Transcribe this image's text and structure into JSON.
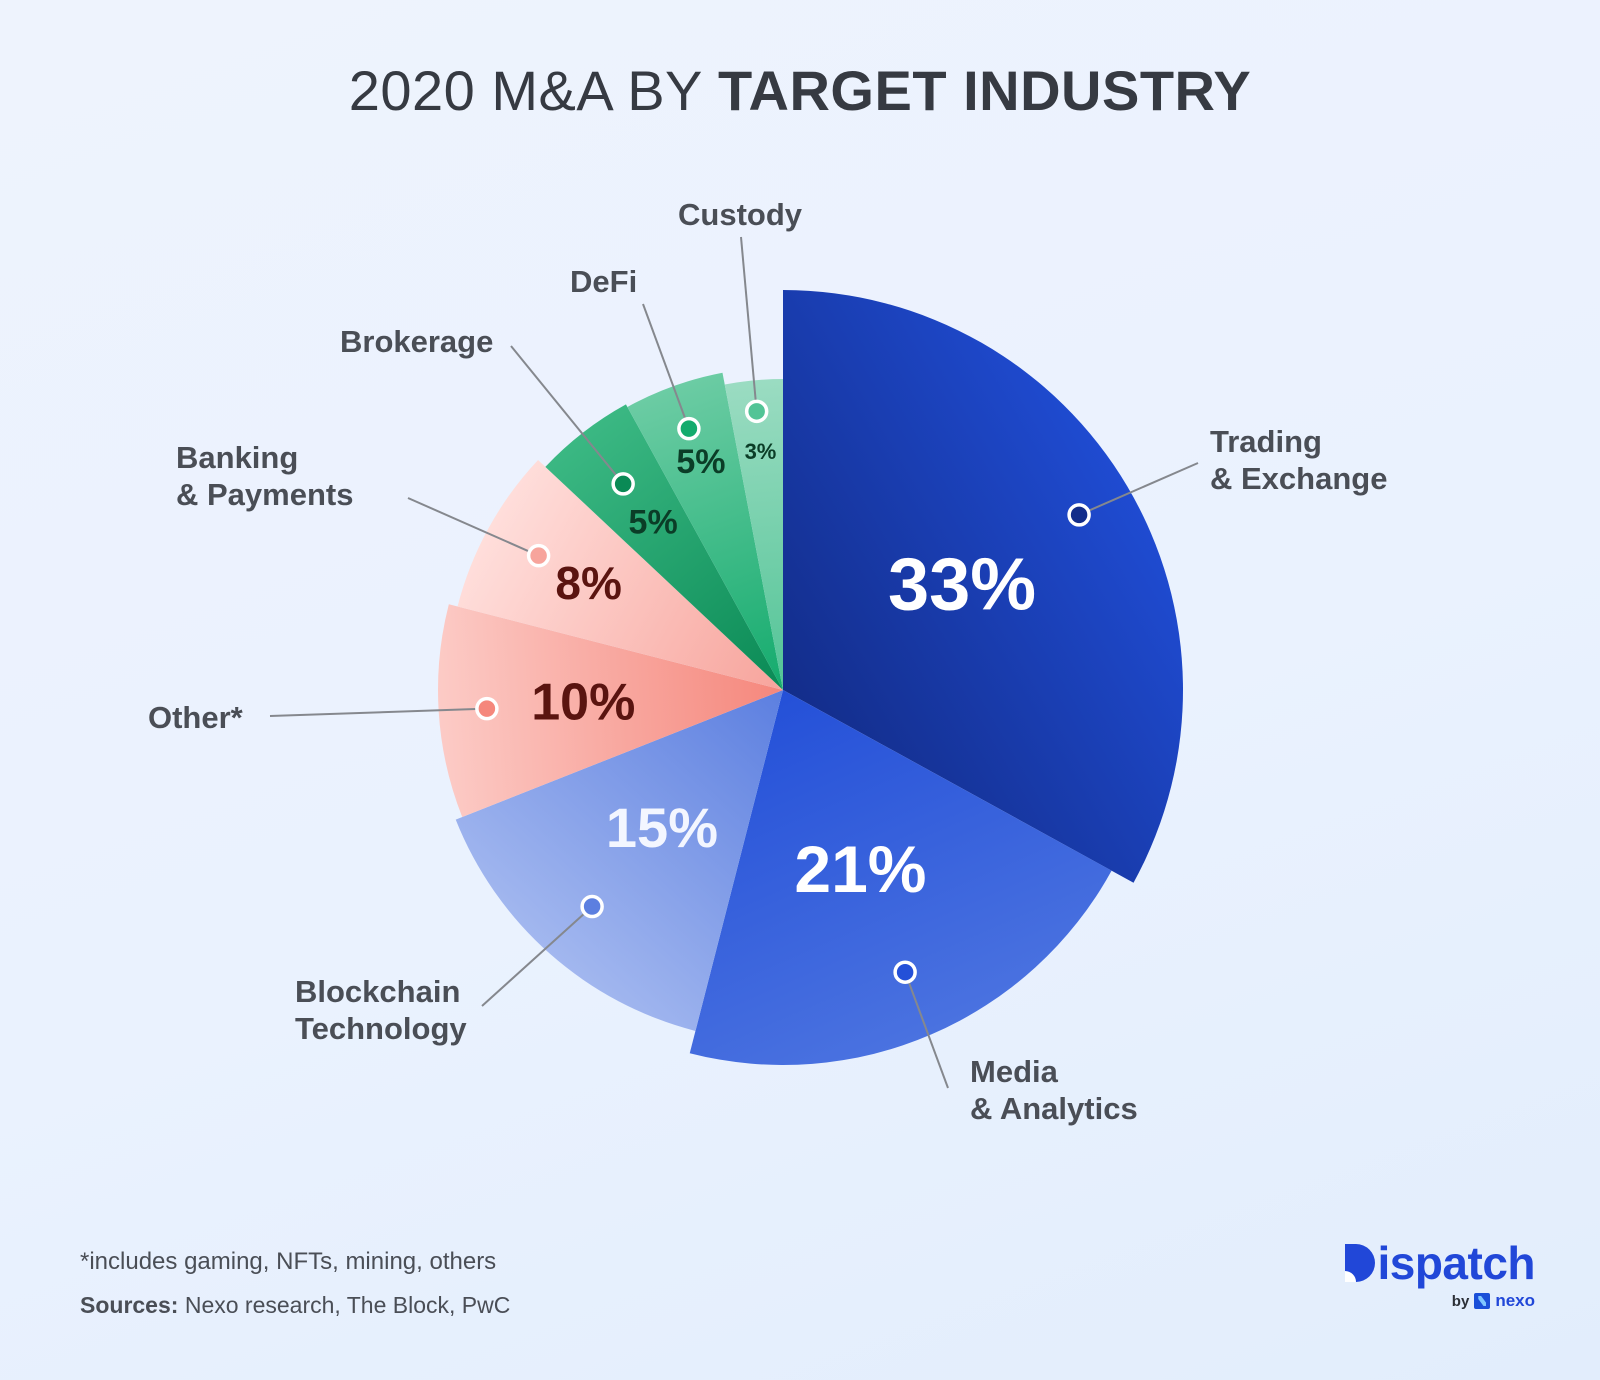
{
  "title": {
    "light": "2020 M&A BY ",
    "bold": "TARGET INDUSTRY"
  },
  "chart_data": {
    "type": "pie",
    "title": "2020 M&A BY TARGET INDUSTRY",
    "start_angle_deg": 0,
    "direction": "clockwise",
    "slices": [
      {
        "name": "Trading & Exchange",
        "label_lines": [
          "Trading",
          "& Exchange"
        ],
        "value": 33,
        "display": "33%",
        "color_light": "#1f4bd1",
        "color_dark": "#132d8a",
        "text_color": "#ffffff"
      },
      {
        "name": "Media & Analytics",
        "label_lines": [
          "Media",
          "& Analytics"
        ],
        "value": 21,
        "display": "21%",
        "color_light": "#4a72e0",
        "color_dark": "#2450d8",
        "text_color": "#ffffff"
      },
      {
        "name": "Blockchain Technology",
        "label_lines": [
          "Blockchain",
          "Technology"
        ],
        "value": 15,
        "display": "15%",
        "color_light": "#a2b7ef",
        "color_dark": "#5c7fe0",
        "text_color": "#f3f6ff"
      },
      {
        "name": "Other*",
        "label_lines": [
          "Other*"
        ],
        "value": 10,
        "display": "10%",
        "color_light": "#fccbc6",
        "color_dark": "#f5877c",
        "text_color": "#5a1410"
      },
      {
        "name": "Banking & Payments",
        "label_lines": [
          "Banking",
          "& Payments"
        ],
        "value": 8,
        "display": "8%",
        "color_light": "#ffdedb",
        "color_dark": "#f7a49c",
        "text_color": "#5a1410"
      },
      {
        "name": "Brokerage",
        "label_lines": [
          "Brokerage"
        ],
        "value": 5,
        "display": "5%",
        "color_light": "#3bb883",
        "color_dark": "#0a8a55",
        "text_color": "#0b3d27"
      },
      {
        "name": "DeFi",
        "label_lines": [
          "DeFi"
        ],
        "value": 5,
        "display": "5%",
        "color_light": "#6ccca4",
        "color_dark": "#14ab6d",
        "text_color": "#0b3d27"
      },
      {
        "name": "Custody",
        "label_lines": [
          "Custody"
        ],
        "value": 3,
        "display": "3%",
        "color_light": "#9bdcc2",
        "color_dark": "#52c496",
        "text_color": "#0b3d27"
      }
    ],
    "legend": "none",
    "units": "percent of deals"
  },
  "footer": {
    "footnote": "*includes gaming, NFTs, mining, others",
    "sources_label": "Sources:",
    "sources_text": " Nexo research, The Block, PwC"
  },
  "brand": {
    "name_rest": "ispatch",
    "by": "by",
    "partner": "nexo"
  }
}
